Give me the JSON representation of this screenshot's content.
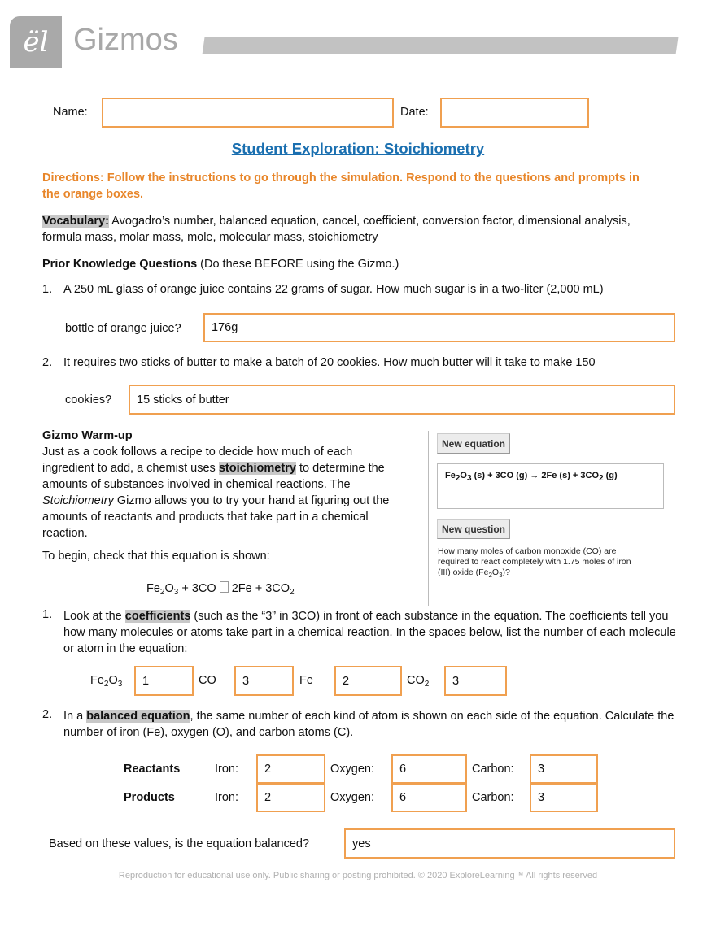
{
  "header": {
    "logo_glyph": "ël",
    "brand": "Gizmos"
  },
  "form": {
    "name_label": "Name:",
    "name_value": "",
    "date_label": "Date:",
    "date_value": ""
  },
  "title": "Student Exploration: Stoichiometry",
  "directions": "Directions: Follow the instructions to go through the simulation. Respond to the questions and prompts in the orange boxes.",
  "vocabulary": {
    "label": "Vocabulary:",
    "text": " Avogadro’s number, balanced equation, cancel, coefficient, conversion factor, dimensional analysis, formula mass, molar mass, mole, molecular mass, stoichiometry"
  },
  "prior": {
    "heading": "Prior Knowledge Questions",
    "note": " (Do these BEFORE using the Gizmo.)",
    "q1": {
      "num": "1.",
      "text": "A 250 mL glass of orange juice contains 22 grams of sugar. How much sugar is in a two-liter (2,000 mL)",
      "text2": "bottle of orange juice?",
      "answer": "176g"
    },
    "q2": {
      "num": "2.",
      "text": "It requires two sticks of butter to make a batch of 20 cookies. How much butter will it take to make 150",
      "text2": "cookies?",
      "answer": "15 sticks of butter"
    }
  },
  "warmup": {
    "heading": "Gizmo Warm-up",
    "p1a": "Just as a cook follows a recipe to decide how much of each ingredient to add, a chemist uses ",
    "p1b": "stoichiometry",
    "p1c": " to determine the amounts of substances involved in chemical reactions. The ",
    "p1d": "Stoichiometry",
    "p1e": " Gizmo allows you to try your hand at figuring out the amounts of reactants and products that take part in a chemical reaction.",
    "begin": "To begin, check that this equation is shown:",
    "eq_arrow": "",
    "eq": {
      "fe": "Fe",
      "o": "O",
      "two": "2",
      "three": "3",
      "plus1": " + 3CO ",
      "arrow": "",
      "rest": " 2Fe + 3CO"
    }
  },
  "gizmo": {
    "new_equation": "New equation",
    "equation_a": "Fe",
    "equation_b": " (s) + 3CO (g) → 2Fe (s) + 3CO",
    "equation_c": " (g)",
    "new_question": "New question",
    "question_a": "How many moles of carbon monoxide (CO) are required to react completely with 1.75 moles of iron (III) oxide (Fe",
    "question_b": ")?"
  },
  "q1": {
    "num": "1.",
    "a": "Look at the ",
    "b": "coefficients",
    "c": " (such as the “3” in 3CO) in front of each substance in the equation. The coefficients tell you how many molecules or atoms take part in a chemical reaction. In the spaces below, list the number of each molecule or atom in the equation:",
    "labels": {
      "fe2o3": "Fe",
      "co": "CO",
      "fe": "Fe",
      "co2": "CO"
    },
    "answers": {
      "fe2o3": "1",
      "co": "3",
      "fe": "2",
      "co2": "3"
    }
  },
  "q2": {
    "num": "2.",
    "a": "In a ",
    "b": "balanced equation",
    "c": ", the same number of each kind of atom is shown on each side of the equation. Calculate the number of iron (Fe), oxygen (O), and carbon atoms (C).",
    "rows": [
      {
        "label": "Reactants",
        "iron": "2",
        "oxygen": "6",
        "carbon": "3"
      },
      {
        "label": "Products",
        "iron": "2",
        "oxygen": "6",
        "carbon": "3"
      }
    ],
    "iron_label": "Iron:",
    "oxygen_label": "Oxygen:",
    "carbon_label": "Carbon:",
    "balanced_q": "Based on these values, is the equation balanced?",
    "balanced_a": "yes"
  },
  "footer": "Reproduction for educational use only. Public sharing or posting prohibited. © 2020 ExploreLearning™ All rights reserved",
  "colors": {
    "accent_orange": "#e8862a",
    "title_blue": "#1a6fb0",
    "box_border": "#f0a050"
  }
}
